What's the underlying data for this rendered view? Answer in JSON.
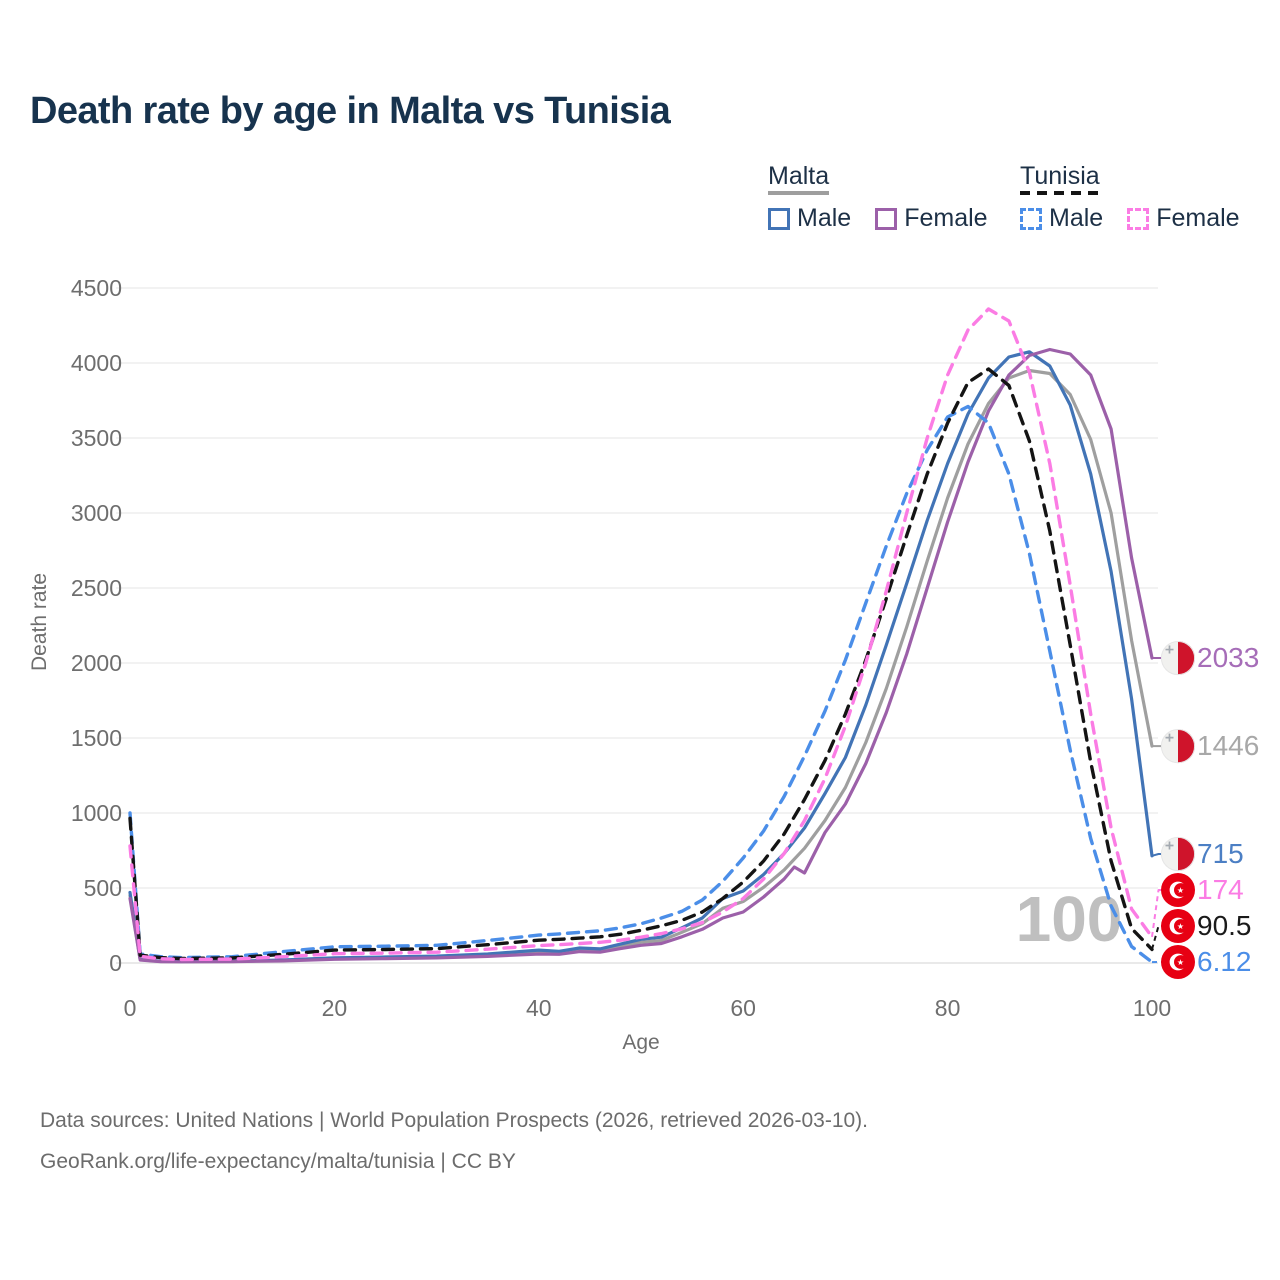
{
  "title": "Death rate by age in Malta vs Tunisia",
  "legend": {
    "groups": [
      {
        "label": "Malta",
        "style": "solid",
        "underline_color": "#9e9e9e",
        "items": [
          {
            "label": "Male",
            "color": "#4274b6"
          },
          {
            "label": "Female",
            "color": "#9c60a9"
          }
        ]
      },
      {
        "label": "Tunisia",
        "style": "dashed",
        "underline_color": "#141414",
        "items": [
          {
            "label": "Male",
            "color": "#4b8ee8"
          },
          {
            "label": "Female",
            "color": "#fb7ce4"
          }
        ]
      }
    ]
  },
  "axes": {
    "x": {
      "label": "Age",
      "ticks": [
        0,
        20,
        40,
        60,
        80,
        100
      ],
      "range": [
        0,
        100
      ]
    },
    "y": {
      "label": "Death rate",
      "ticks": [
        0,
        500,
        1000,
        1500,
        2000,
        2500,
        3000,
        3500,
        4000,
        4500
      ],
      "range": [
        0,
        4500
      ]
    }
  },
  "hover_age_label": "100",
  "colors": {
    "title": "#17334e",
    "legend_text": "#1d3046",
    "grid": "#e9e9e9",
    "grid_zero": "#dcdcdc",
    "axis_text": "#6e6e6e",
    "watermark": "#bfbfbf",
    "footer": "#6c6c6c",
    "malta_red": "#cf142b",
    "tunisia_red": "#e70013"
  },
  "footer": {
    "line1": "Data sources: United Nations | World Population Prospects (2026, retrieved 2026-03-10).",
    "line2": "GeoRank.org/life-expectancy/malta/tunisia | CC BY"
  },
  "chart_data": {
    "type": "line",
    "title": "Death rate by age in Malta vs Tunisia",
    "xlabel": "Age",
    "ylabel": "Death rate",
    "xlim": [
      0,
      100
    ],
    "ylim": [
      0,
      4500
    ],
    "grid": "horizontal",
    "legend_position": "top-right",
    "series": [
      {
        "name": "Malta (both sexes)",
        "country": "Malta",
        "sex": "both",
        "color": "#9f9f9f",
        "dashed": false,
        "flag": "malta",
        "end_label": "1446",
        "end_label_color": "#a8a8a8",
        "points": [
          [
            0,
            450
          ],
          [
            1,
            22
          ],
          [
            3,
            10
          ],
          [
            5,
            9
          ],
          [
            10,
            10
          ],
          [
            15,
            17
          ],
          [
            20,
            29
          ],
          [
            25,
            34
          ],
          [
            30,
            40
          ],
          [
            35,
            52
          ],
          [
            40,
            74
          ],
          [
            42,
            70
          ],
          [
            44,
            88
          ],
          [
            46,
            84
          ],
          [
            48,
            110
          ],
          [
            50,
            138
          ],
          [
            52,
            150
          ],
          [
            54,
            205
          ],
          [
            56,
            262
          ],
          [
            58,
            365
          ],
          [
            60,
            410
          ],
          [
            62,
            505
          ],
          [
            64,
            620
          ],
          [
            66,
            765
          ],
          [
            68,
            950
          ],
          [
            70,
            1170
          ],
          [
            72,
            1470
          ],
          [
            74,
            1830
          ],
          [
            76,
            2240
          ],
          [
            78,
            2680
          ],
          [
            80,
            3100
          ],
          [
            82,
            3460
          ],
          [
            84,
            3730
          ],
          [
            86,
            3900
          ],
          [
            88,
            3950
          ],
          [
            90,
            3930
          ],
          [
            92,
            3790
          ],
          [
            94,
            3490
          ],
          [
            96,
            3000
          ],
          [
            98,
            2150
          ],
          [
            100,
            1446
          ]
        ]
      },
      {
        "name": "Malta male",
        "country": "Malta",
        "sex": "male",
        "color": "#4274b6",
        "dashed": false,
        "flag": "malta",
        "end_label": "715",
        "end_label_color": "#4c7fc4",
        "points": [
          [
            0,
            470
          ],
          [
            1,
            24
          ],
          [
            3,
            12
          ],
          [
            5,
            10
          ],
          [
            10,
            12
          ],
          [
            15,
            20
          ],
          [
            20,
            34
          ],
          [
            25,
            40
          ],
          [
            30,
            46
          ],
          [
            35,
            60
          ],
          [
            40,
            86
          ],
          [
            42,
            78
          ],
          [
            44,
            100
          ],
          [
            46,
            94
          ],
          [
            48,
            126
          ],
          [
            50,
            158
          ],
          [
            52,
            172
          ],
          [
            54,
            235
          ],
          [
            56,
            300
          ],
          [
            58,
            430
          ],
          [
            60,
            480
          ],
          [
            62,
            590
          ],
          [
            64,
            730
          ],
          [
            66,
            900
          ],
          [
            68,
            1130
          ],
          [
            70,
            1370
          ],
          [
            72,
            1720
          ],
          [
            74,
            2120
          ],
          [
            76,
            2530
          ],
          [
            78,
            2950
          ],
          [
            80,
            3330
          ],
          [
            82,
            3660
          ],
          [
            84,
            3900
          ],
          [
            86,
            4040
          ],
          [
            88,
            4075
          ],
          [
            90,
            3980
          ],
          [
            92,
            3720
          ],
          [
            94,
            3260
          ],
          [
            96,
            2610
          ],
          [
            98,
            1760
          ],
          [
            100,
            715
          ]
        ]
      },
      {
        "name": "Malta female",
        "country": "Malta",
        "sex": "female",
        "color": "#9c60a9",
        "dashed": false,
        "flag": "malta",
        "end_label": "2033",
        "end_label_color": "#a66db8",
        "points": [
          [
            0,
            430
          ],
          [
            1,
            20
          ],
          [
            3,
            9
          ],
          [
            5,
            8
          ],
          [
            10,
            9
          ],
          [
            15,
            14
          ],
          [
            20,
            25
          ],
          [
            25,
            29
          ],
          [
            30,
            34
          ],
          [
            35,
            44
          ],
          [
            40,
            60
          ],
          [
            42,
            58
          ],
          [
            44,
            76
          ],
          [
            46,
            72
          ],
          [
            48,
            96
          ],
          [
            50,
            118
          ],
          [
            52,
            130
          ],
          [
            54,
            175
          ],
          [
            56,
            225
          ],
          [
            58,
            300
          ],
          [
            60,
            340
          ],
          [
            62,
            440
          ],
          [
            64,
            560
          ],
          [
            65,
            640
          ],
          [
            66,
            600
          ],
          [
            68,
            870
          ],
          [
            70,
            1060
          ],
          [
            72,
            1330
          ],
          [
            74,
            1670
          ],
          [
            76,
            2060
          ],
          [
            78,
            2500
          ],
          [
            80,
            2940
          ],
          [
            82,
            3340
          ],
          [
            84,
            3680
          ],
          [
            86,
            3920
          ],
          [
            88,
            4050
          ],
          [
            90,
            4090
          ],
          [
            92,
            4060
          ],
          [
            94,
            3920
          ],
          [
            96,
            3560
          ],
          [
            98,
            2700
          ],
          [
            100,
            2033
          ]
        ]
      },
      {
        "name": "Tunisia male",
        "country": "Tunisia",
        "sex": "male",
        "color": "#4b8ee8",
        "dashed": true,
        "flag": "tunisia",
        "end_label": "6.12",
        "end_label_color": "#4b8ee8",
        "points": [
          [
            0,
            1000
          ],
          [
            1,
            60
          ],
          [
            3,
            42
          ],
          [
            5,
            36
          ],
          [
            10,
            42
          ],
          [
            15,
            76
          ],
          [
            20,
            108
          ],
          [
            25,
            112
          ],
          [
            30,
            118
          ],
          [
            35,
            150
          ],
          [
            40,
            186
          ],
          [
            42,
            194
          ],
          [
            44,
            205
          ],
          [
            46,
            215
          ],
          [
            48,
            235
          ],
          [
            50,
            262
          ],
          [
            52,
            300
          ],
          [
            54,
            345
          ],
          [
            56,
            420
          ],
          [
            58,
            545
          ],
          [
            60,
            700
          ],
          [
            62,
            880
          ],
          [
            64,
            1110
          ],
          [
            66,
            1380
          ],
          [
            68,
            1680
          ],
          [
            70,
            2020
          ],
          [
            72,
            2400
          ],
          [
            74,
            2780
          ],
          [
            76,
            3130
          ],
          [
            78,
            3420
          ],
          [
            80,
            3640
          ],
          [
            82,
            3710
          ],
          [
            84,
            3600
          ],
          [
            86,
            3260
          ],
          [
            88,
            2730
          ],
          [
            90,
            2080
          ],
          [
            92,
            1420
          ],
          [
            94,
            830
          ],
          [
            96,
            380
          ],
          [
            98,
            110
          ],
          [
            100,
            6.12
          ]
        ]
      },
      {
        "name": "Tunisia (both sexes)",
        "country": "Tunisia",
        "sex": "both",
        "color": "#141414",
        "dashed": true,
        "flag": "tunisia",
        "end_label": "90.5",
        "end_label_color": "#1a1a1a",
        "points": [
          [
            0,
            965
          ],
          [
            1,
            52
          ],
          [
            3,
            36
          ],
          [
            5,
            30
          ],
          [
            10,
            34
          ],
          [
            15,
            58
          ],
          [
            20,
            86
          ],
          [
            25,
            90
          ],
          [
            30,
            96
          ],
          [
            35,
            122
          ],
          [
            40,
            152
          ],
          [
            42,
            158
          ],
          [
            44,
            166
          ],
          [
            46,
            175
          ],
          [
            48,
            192
          ],
          [
            50,
            218
          ],
          [
            52,
            248
          ],
          [
            54,
            285
          ],
          [
            56,
            340
          ],
          [
            58,
            430
          ],
          [
            60,
            540
          ],
          [
            62,
            680
          ],
          [
            64,
            860
          ],
          [
            66,
            1090
          ],
          [
            68,
            1350
          ],
          [
            70,
            1660
          ],
          [
            72,
            2020
          ],
          [
            74,
            2430
          ],
          [
            76,
            2850
          ],
          [
            78,
            3260
          ],
          [
            80,
            3600
          ],
          [
            82,
            3870
          ],
          [
            84,
            3960
          ],
          [
            86,
            3850
          ],
          [
            88,
            3480
          ],
          [
            90,
            2880
          ],
          [
            92,
            2120
          ],
          [
            94,
            1340
          ],
          [
            96,
            680
          ],
          [
            98,
            230
          ],
          [
            100,
            90.5
          ]
        ]
      },
      {
        "name": "Tunisia female",
        "country": "Tunisia",
        "sex": "female",
        "color": "#fb7ce4",
        "dashed": true,
        "flag": "tunisia",
        "end_label": "174",
        "end_label_color": "#fb7ce4",
        "points": [
          [
            0,
            780
          ],
          [
            1,
            45
          ],
          [
            3,
            28
          ],
          [
            5,
            23
          ],
          [
            10,
            26
          ],
          [
            15,
            42
          ],
          [
            20,
            62
          ],
          [
            25,
            66
          ],
          [
            30,
            72
          ],
          [
            35,
            92
          ],
          [
            40,
            116
          ],
          [
            42,
            122
          ],
          [
            44,
            130
          ],
          [
            46,
            138
          ],
          [
            48,
            152
          ],
          [
            50,
            172
          ],
          [
            52,
            196
          ],
          [
            54,
            228
          ],
          [
            56,
            270
          ],
          [
            58,
            340
          ],
          [
            60,
            430
          ],
          [
            62,
            560
          ],
          [
            64,
            730
          ],
          [
            66,
            950
          ],
          [
            68,
            1230
          ],
          [
            70,
            1580
          ],
          [
            72,
            2000
          ],
          [
            74,
            2480
          ],
          [
            76,
            3000
          ],
          [
            78,
            3500
          ],
          [
            80,
            3920
          ],
          [
            82,
            4220
          ],
          [
            84,
            4360
          ],
          [
            86,
            4280
          ],
          [
            88,
            3940
          ],
          [
            90,
            3330
          ],
          [
            92,
            2520
          ],
          [
            94,
            1660
          ],
          [
            96,
            900
          ],
          [
            98,
            360
          ],
          [
            100,
            174
          ]
        ]
      }
    ]
  }
}
